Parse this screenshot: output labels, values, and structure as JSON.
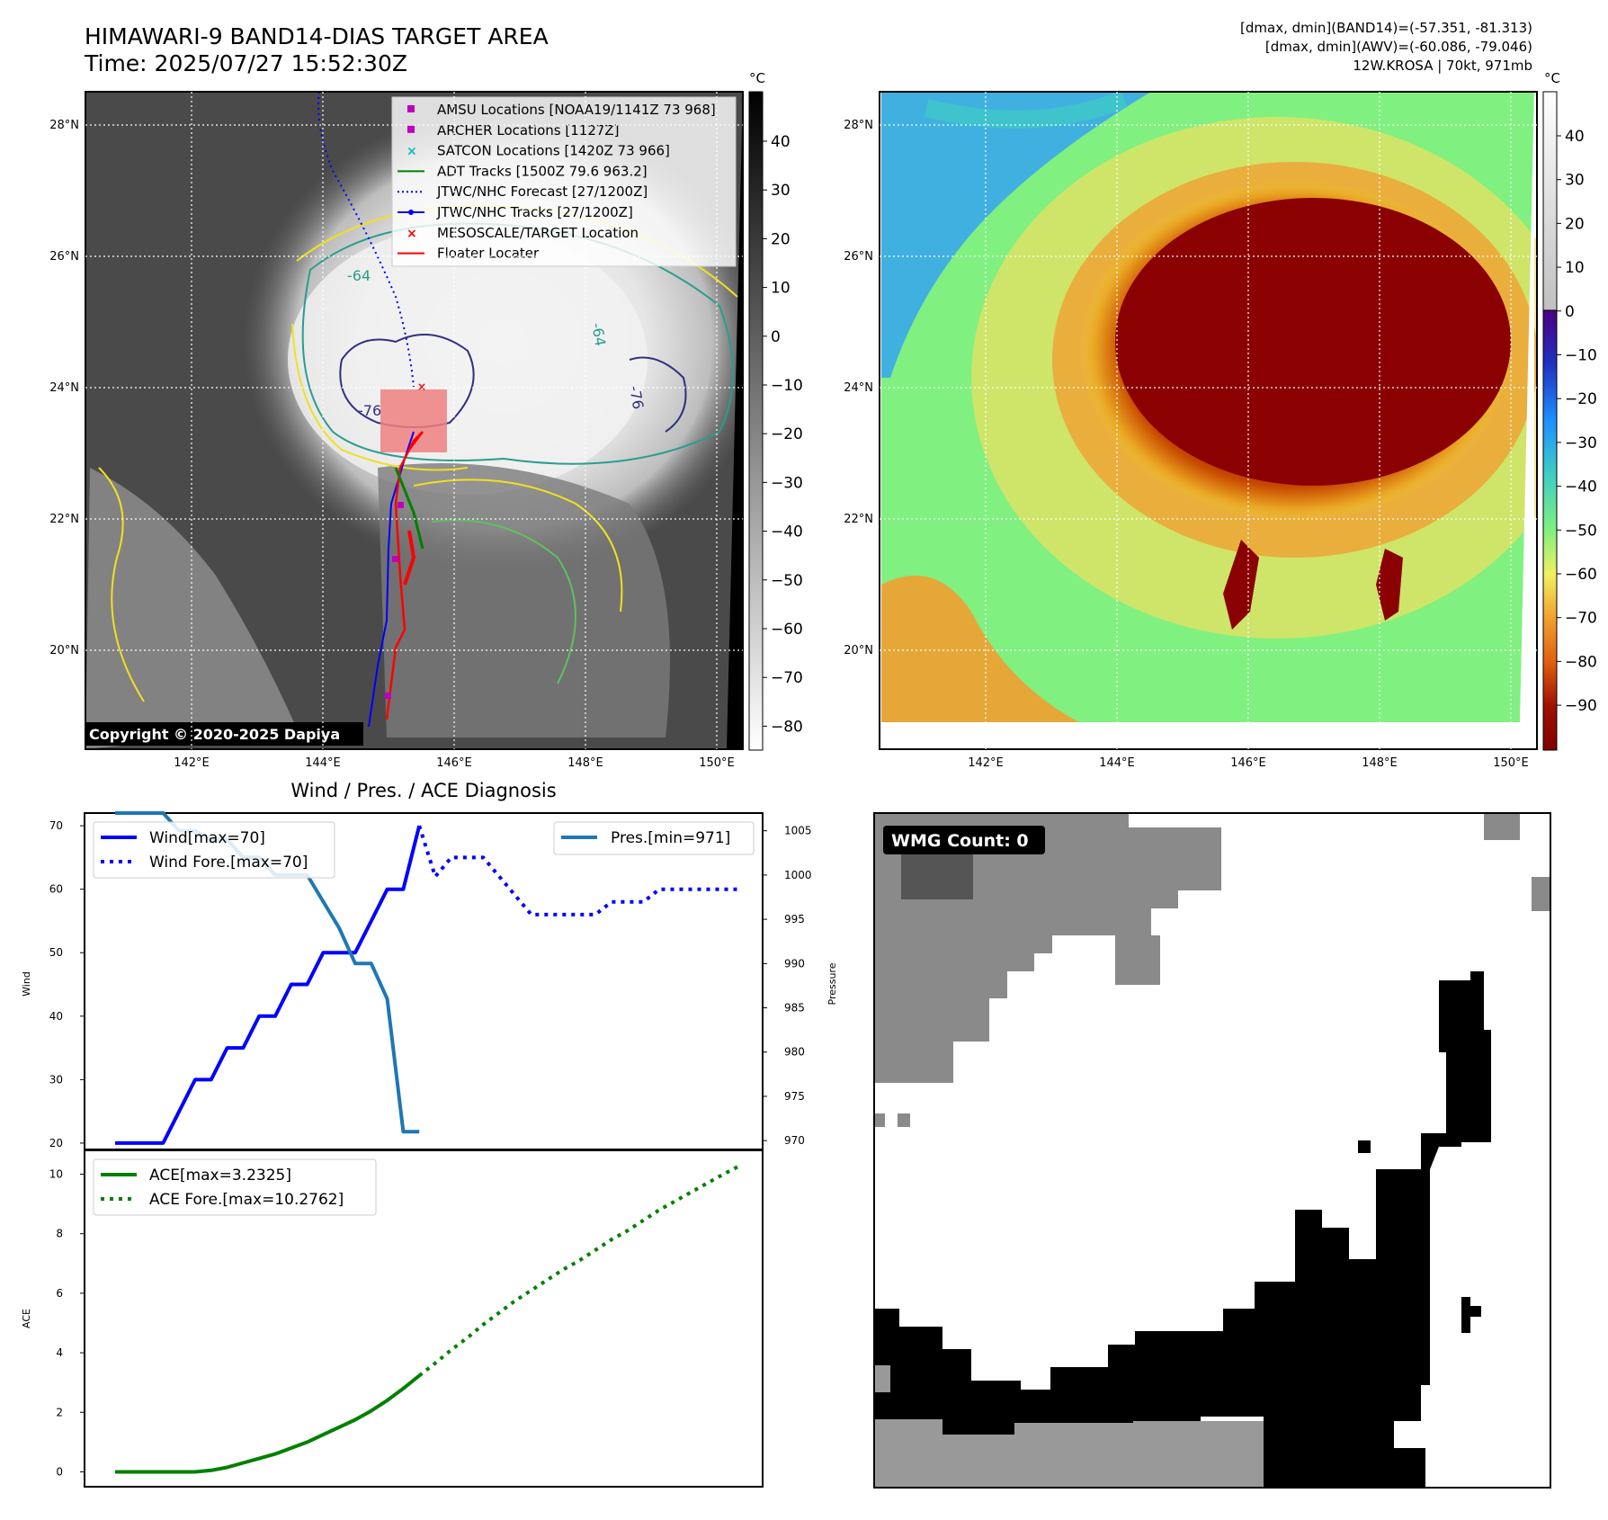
{
  "header": {
    "title_line1": "HIMAWARI-9 BAND14-DIAS TARGET AREA",
    "title_line2": "Time: 2025/07/27 15:52:30Z",
    "info_line1": "[dmax, dmin](BAND14)=(-57.351, -81.313)",
    "info_line2": "[dmax, dmin](AWV)=(-60.086, -79.046)",
    "info_line3": "12W.KROSA | 70kt, 971mb"
  },
  "maps": {
    "lat_labels": [
      "28°N",
      "26°N",
      "24°N",
      "22°N",
      "20°N"
    ],
    "lon_labels": [
      "142°E",
      "144°E",
      "146°E",
      "148°E",
      "150°E"
    ],
    "copyright": "Copyright © 2020-2025 Dapiya",
    "contour_labels": [
      "-64",
      "-76",
      "-76",
      "-64",
      "-76"
    ],
    "colorbar1_unit": "°C",
    "colorbar1_ticks": [
      "40",
      "30",
      "20",
      "10",
      "0",
      "−10",
      "−20",
      "−30",
      "−40",
      "−50",
      "−60",
      "−70",
      "−80"
    ],
    "colorbar2_unit": "°C",
    "colorbar2_ticks": [
      "40",
      "30",
      "20",
      "10",
      "0",
      "−10",
      "−20",
      "−30",
      "−40",
      "−50",
      "−60",
      "−70",
      "−80",
      "−90"
    ],
    "legend": [
      {
        "label": "AMSU Locations [NOAA19/1141Z 73 968]",
        "color": "#bf00bf",
        "marker": "square"
      },
      {
        "label": "ARCHER Locations [1127Z]",
        "color": "#bf00bf",
        "marker": "square"
      },
      {
        "label": "SATCON Locations [1420Z 73 966]",
        "color": "#00bfbf",
        "marker": "x"
      },
      {
        "label": "ADT Tracks [1500Z 79.6 963.2]",
        "color": "#008000",
        "marker": "line"
      },
      {
        "label": "JTWC/NHC Forecast [27/1200Z]",
        "color": "#0000ff",
        "marker": "dotted"
      },
      {
        "label": "JTWC/NHC Tracks [27/1200Z]",
        "color": "#0000ff",
        "marker": "line-dot"
      },
      {
        "label": "MESOSCALE/TARGET Location",
        "color": "#ff0000",
        "marker": "x"
      },
      {
        "label": "Floater Locater",
        "color": "#ff0000",
        "marker": "line"
      }
    ]
  },
  "diagnosis": {
    "title": "Wind / Pres. / ACE Diagnosis",
    "wind_ylabel": "Wind",
    "pres_ylabel": "Pressure",
    "ace_ylabel": "ACE",
    "wind_legend_1": "Wind[max=70]",
    "wind_legend_2": "Wind Fore.[max=70]",
    "pres_legend": "Pres.[min=971]",
    "ace_legend_1": "ACE[max=3.2325]",
    "ace_legend_2": "ACE Fore.[max=10.2762]",
    "wind_ticks": [
      "70",
      "60",
      "50",
      "40",
      "30",
      "20"
    ],
    "pres_ticks": [
      "1005",
      "1000",
      "995",
      "990",
      "985",
      "980",
      "975",
      "970"
    ],
    "ace_ticks": [
      "10",
      "8",
      "6",
      "4",
      "2",
      "0"
    ]
  },
  "wmg": {
    "label": "WMG Count: 0"
  },
  "chart_data": [
    {
      "type": "line",
      "title": "Wind / Pres. / ACE Diagnosis",
      "ylabel": "Wind",
      "ylim": [
        19,
        72
      ],
      "x": [
        0,
        1,
        2,
        3,
        4,
        5,
        6,
        7,
        8,
        9,
        10,
        11,
        12,
        13,
        14,
        15,
        16,
        17,
        18,
        19
      ],
      "series": [
        {
          "name": "Wind[max=70]",
          "color": "#0000ff",
          "style": "solid",
          "values": [
            20,
            20,
            20,
            20,
            25,
            30,
            30,
            35,
            35,
            40,
            40,
            45,
            45,
            50,
            50,
            50,
            55,
            60,
            60,
            70
          ]
        },
        {
          "name": "Wind Fore.[max=70]",
          "color": "#0000ff",
          "style": "dotted",
          "x": [
            19,
            20,
            21,
            22,
            23,
            24,
            25,
            26,
            27,
            28,
            29,
            30,
            31,
            32,
            33,
            34,
            35,
            36,
            37,
            38,
            39
          ],
          "values": [
            70,
            62,
            65,
            65,
            65,
            62,
            59,
            56,
            56,
            56,
            56,
            56,
            58,
            58,
            58,
            60,
            60,
            60,
            60,
            60,
            60
          ]
        }
      ]
    },
    {
      "type": "line",
      "ylabel": "Pressure",
      "ylim": [
        969,
        1007
      ],
      "x": [
        0,
        1,
        2,
        3,
        4,
        5,
        6,
        7,
        8,
        9,
        10,
        11,
        12,
        13,
        14,
        15,
        16,
        17,
        18,
        19
      ],
      "series": [
        {
          "name": "Pres.[min=971]",
          "color": "#1f77b4",
          "style": "solid",
          "values": [
            1007,
            1007,
            1007,
            1007,
            1005,
            1005,
            1004,
            1004,
            1002,
            1002,
            1000,
            1000,
            1000,
            997,
            994,
            990,
            990,
            986,
            971,
            971
          ]
        }
      ]
    },
    {
      "type": "line",
      "ylabel": "ACE",
      "ylim": [
        -0.5,
        10.8
      ],
      "x": [
        0,
        1,
        2,
        3,
        4,
        5,
        6,
        7,
        8,
        9,
        10,
        11,
        12,
        13,
        14,
        15,
        16,
        17,
        18,
        19
      ],
      "series": [
        {
          "name": "ACE[max=3.2325]",
          "color": "#008000",
          "style": "solid",
          "values": [
            0,
            0,
            0,
            0,
            0,
            0,
            0.05,
            0.15,
            0.3,
            0.45,
            0.6,
            0.8,
            1.0,
            1.25,
            1.5,
            1.75,
            2.05,
            2.4,
            2.8,
            3.2325
          ]
        },
        {
          "name": "ACE Fore.[max=10.2762]",
          "color": "#008000",
          "style": "dotted",
          "x": [
            19,
            20,
            21,
            22,
            23,
            24,
            25,
            26,
            27,
            28,
            29,
            30,
            31,
            32,
            33,
            34,
            35,
            36,
            37,
            38,
            39
          ],
          "values": [
            3.2325,
            3.65,
            4.1,
            4.5,
            4.95,
            5.35,
            5.75,
            6.1,
            6.45,
            6.8,
            7.1,
            7.45,
            7.8,
            8.1,
            8.45,
            8.8,
            9.1,
            9.4,
            9.7,
            10.0,
            10.2762
          ]
        }
      ]
    }
  ]
}
